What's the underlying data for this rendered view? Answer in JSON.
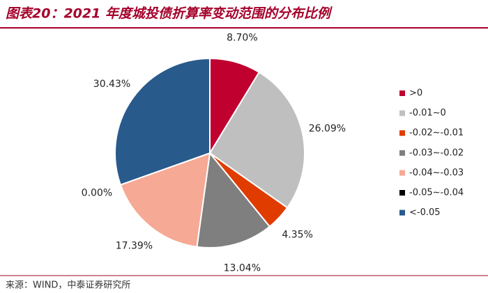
{
  "chart_data": {
    "type": "pie",
    "title": "图表20：2021 年度城投债折算率变动范围的分布比例",
    "source": "来源：WIND，中泰证券研究所",
    "categories": [
      ">0",
      "-0.01~0",
      "-0.02~-0.01",
      "-0.03~-0.02",
      "-0.04~-0.03",
      "-0.05~-0.04",
      "<-0.05"
    ],
    "values": [
      8.7,
      26.09,
      4.35,
      13.04,
      17.39,
      0.0,
      30.43
    ],
    "value_labels": [
      "8.70%",
      "26.09%",
      "4.35%",
      "13.04%",
      "17.39%",
      "0.00%",
      "30.43%"
    ],
    "colors": [
      "#c0002f",
      "#bfbfbf",
      "#e03c00",
      "#7f7f7f",
      "#f6a994",
      "#000000",
      "#285a8c"
    ],
    "legend": "right"
  }
}
